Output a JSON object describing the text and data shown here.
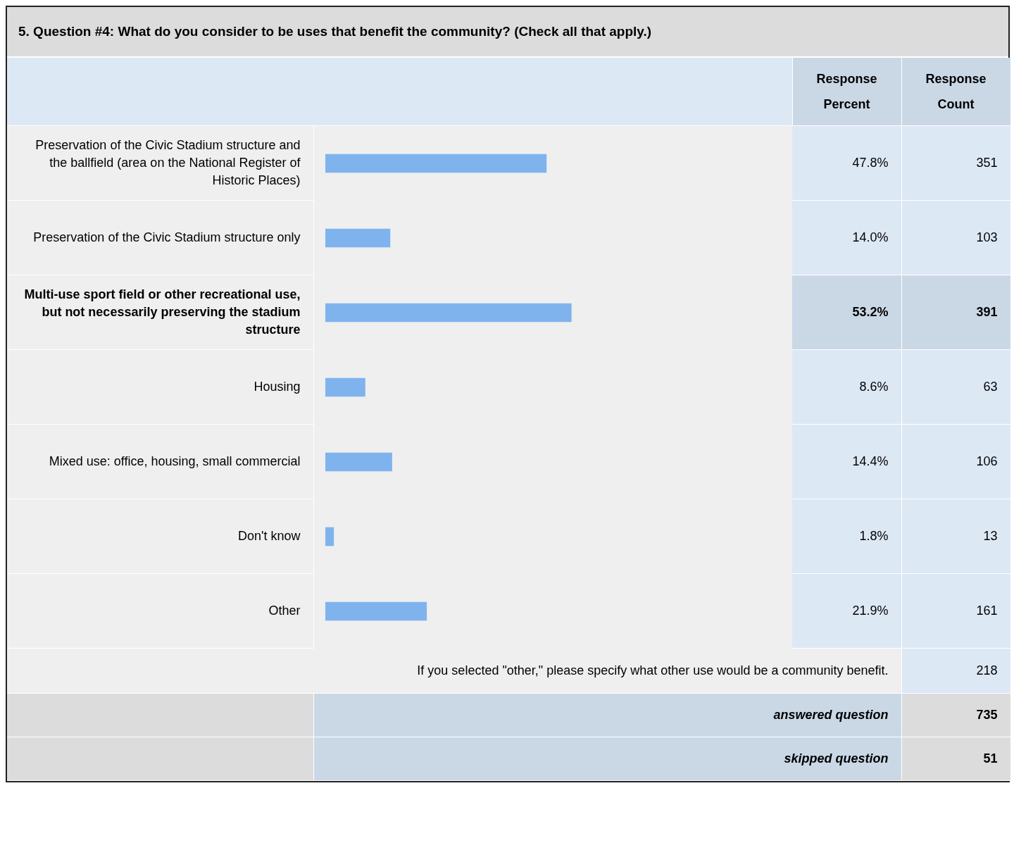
{
  "chart_data": {
    "type": "bar",
    "orientation": "horizontal",
    "title": "5. Question #4: What do you consider to be uses that benefit the community? (Check all that apply.)",
    "categories": [
      "Preservation of the Civic Stadium structure and the ballfield (area on the National Register of Historic Places)",
      "Preservation of the Civic Stadium structure only",
      "Multi-use sport field or other recreational use, but not necessarily preserving the stadium structure",
      "Housing",
      "Mixed use: office, housing, small commercial",
      "Don't know",
      "Other"
    ],
    "tick_labels": false,
    "legend": false,
    "series": [
      {
        "name": "Response Percent",
        "color": "#7fb3ee",
        "values": [
          47.8,
          14.0,
          53.2,
          8.6,
          14.4,
          1.8,
          21.9
        ],
        "value_labels": [
          "47.8%",
          "14.0%",
          "53.2%",
          "8.6%",
          "14.4%",
          "1.8%",
          "21.9%"
        ]
      }
    ],
    "annotations": [
      "Response Count",
      "351",
      "103",
      "391",
      "63",
      "106",
      "13",
      "161",
      "If you selected \"other,\" please specify what other use would be a community benefit.",
      "218",
      "answered question",
      "735",
      "skipped question",
      "51"
    ]
  }
}
